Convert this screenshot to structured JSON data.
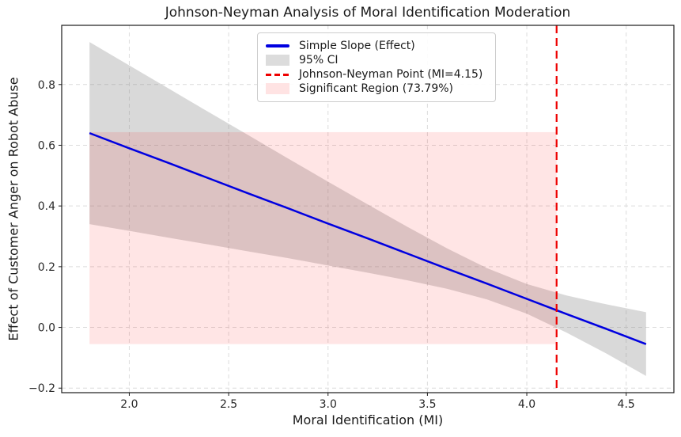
{
  "chart_data": {
    "type": "line",
    "title": "Johnson-Neyman Analysis of Moral Identification Moderation",
    "xlabel": "Moral Identification (MI)",
    "ylabel": "Effect of Customer Anger on Robot Abuse",
    "xlim": [
      1.66,
      4.74
    ],
    "ylim": [
      -0.215,
      0.995
    ],
    "xticks": [
      2.0,
      2.5,
      3.0,
      3.5,
      4.0,
      4.5
    ],
    "xtick_labels": [
      "2.0",
      "2.5",
      "3.0",
      "3.5",
      "4.0",
      "4.5"
    ],
    "yticks": [
      -0.2,
      0.0,
      0.2,
      0.4,
      0.6,
      0.8
    ],
    "ytick_labels": [
      "−0.2",
      "0.0",
      "0.2",
      "0.4",
      "0.6",
      "0.8"
    ],
    "grid": true,
    "x": [
      1.8,
      2.0,
      2.2,
      2.4,
      2.6,
      2.8,
      3.0,
      3.2,
      3.4,
      3.6,
      3.8,
      4.0,
      4.2,
      4.4,
      4.6
    ],
    "series": [
      {
        "name": "Simple Slope (Effect)",
        "values": [
          0.64,
          0.59,
          0.541,
          0.491,
          0.441,
          0.392,
          0.342,
          0.293,
          0.243,
          0.193,
          0.144,
          0.094,
          0.044,
          -0.005,
          -0.055
        ]
      },
      {
        "name": "95% CI lower",
        "values": [
          0.34,
          0.318,
          0.295,
          0.273,
          0.25,
          0.228,
          0.204,
          0.18,
          0.155,
          0.127,
          0.092,
          0.045,
          -0.017,
          -0.086,
          -0.16
        ]
      },
      {
        "name": "95% CI upper",
        "values": [
          0.94,
          0.863,
          0.786,
          0.709,
          0.633,
          0.556,
          0.48,
          0.405,
          0.331,
          0.26,
          0.195,
          0.143,
          0.105,
          0.076,
          0.05
        ]
      }
    ],
    "jn_point": 4.15,
    "significant_region": {
      "x_min": 1.8,
      "x_max": 4.15,
      "y_min": -0.055,
      "y_max": 0.643,
      "percent": "73.79%"
    },
    "legend": {
      "position": "upper center",
      "items": [
        {
          "label": "Simple Slope (Effect)",
          "swatch": "solid-line",
          "color": "#0000e0"
        },
        {
          "label": "95% CI",
          "swatch": "patch",
          "color": "#dcdcdc"
        },
        {
          "label": "Johnson-Neyman Point (MI=4.15)",
          "swatch": "dashed-line",
          "color": "#ee0000"
        },
        {
          "label": "Significant Region (73.79%)",
          "swatch": "patch",
          "color": "#ffe3e3"
        }
      ]
    },
    "colors": {
      "effect_line": "#0000e0",
      "ci_fill": "#808080",
      "ci_opacity": 0.3,
      "jn_line": "#ee0000",
      "sig_fill": "#ff0000",
      "sig_opacity": 0.1,
      "grid": "#dcdcdc",
      "spine": "#1a1a1a",
      "text": "#262626"
    }
  }
}
